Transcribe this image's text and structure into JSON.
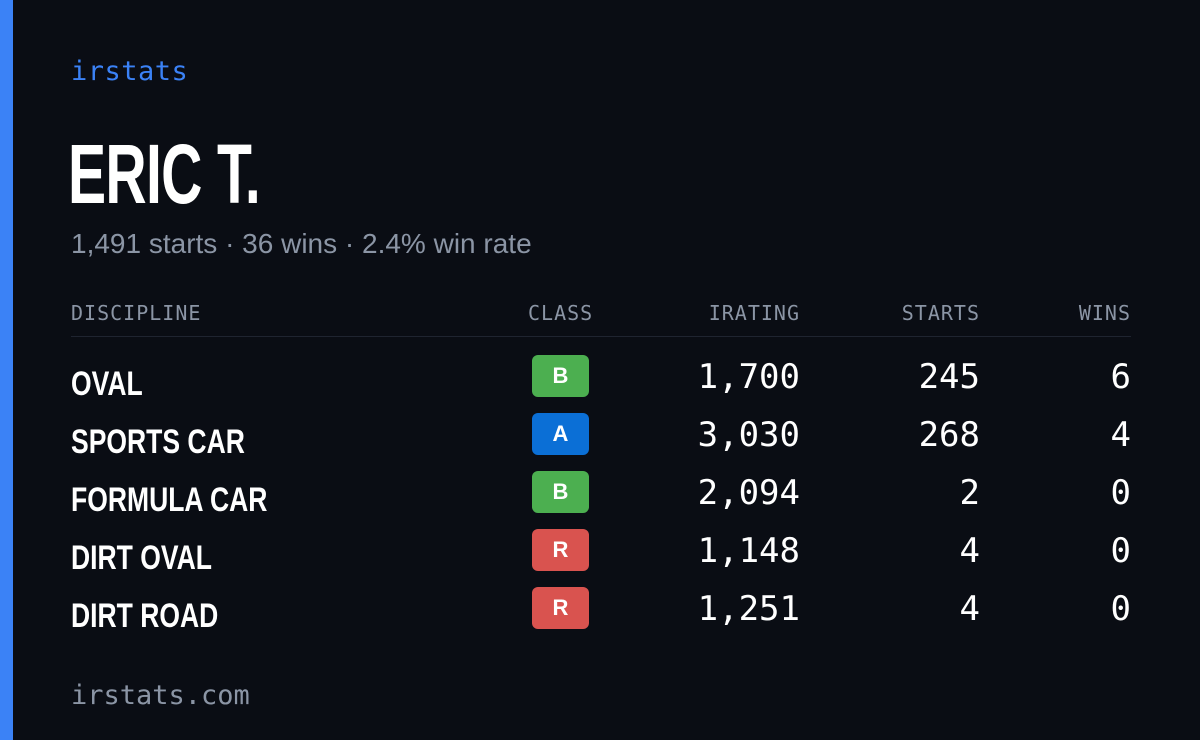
{
  "brand": "irstats",
  "driver": {
    "name": "ERIC T.",
    "summary": "1,491 starts · 36 wins · 2.4% win rate"
  },
  "table": {
    "headers": {
      "discipline": "DISCIPLINE",
      "class": "CLASS",
      "irating": "IRATING",
      "starts": "STARTS",
      "wins": "WINS"
    },
    "rows": [
      {
        "discipline": "OVAL",
        "class": "B",
        "irating": "1,700",
        "starts": "245",
        "wins": "6"
      },
      {
        "discipline": "SPORTS CAR",
        "class": "A",
        "irating": "3,030",
        "starts": "268",
        "wins": "4"
      },
      {
        "discipline": "FORMULA CAR",
        "class": "B",
        "irating": "2,094",
        "starts": "2",
        "wins": "0"
      },
      {
        "discipline": "DIRT OVAL",
        "class": "R",
        "irating": "1,148",
        "starts": "4",
        "wins": "0"
      },
      {
        "discipline": "DIRT ROAD",
        "class": "R",
        "irating": "1,251",
        "starts": "4",
        "wins": "0"
      }
    ]
  },
  "class_colors": {
    "A": "#0b6fd6",
    "B": "#4caf50",
    "R": "#d9534f"
  },
  "colors": {
    "accent": "#3b82f6",
    "background": "#0a0d14",
    "muted_text": "#8b95a5"
  },
  "footer": "irstats.com"
}
